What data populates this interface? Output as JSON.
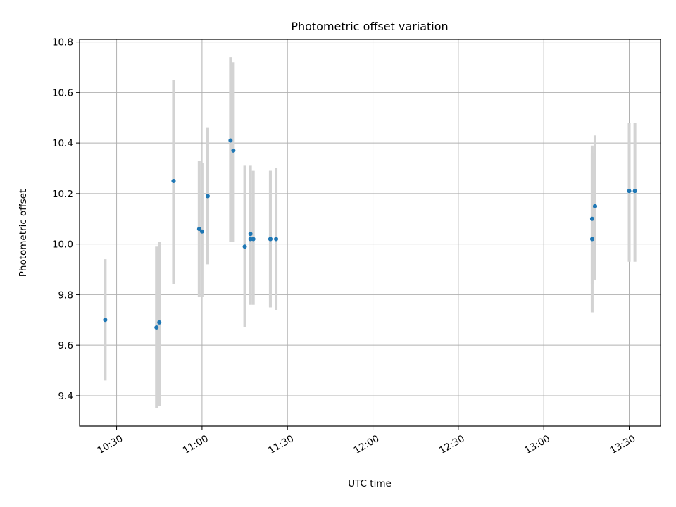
{
  "chart_data": {
    "type": "scatter",
    "title": "Photometric offset variation",
    "xlabel": "UTC time",
    "ylabel": "Photometric offset",
    "xlim": [
      "10:17",
      "13:41"
    ],
    "ylim": [
      9.28,
      10.81
    ],
    "x_ticks": [
      "10:30",
      "11:00",
      "11:30",
      "12:00",
      "12:30",
      "13:00",
      "13:30"
    ],
    "y_ticks": [
      9.4,
      9.6,
      9.8,
      10.0,
      10.2,
      10.4,
      10.6,
      10.8
    ],
    "y_tick_labels": [
      "9.4",
      "9.6",
      "9.8",
      "10.0",
      "10.2",
      "10.4",
      "10.6",
      "10.8"
    ],
    "grid": true,
    "marker_color": "#1f77b4",
    "errorbar_color": "#d3d3d3",
    "points": [
      {
        "x": "10:26",
        "y": 9.7,
        "ylo": 9.46,
        "yhi": 9.94
      },
      {
        "x": "10:44",
        "y": 9.67,
        "ylo": 9.35,
        "yhi": 9.99
      },
      {
        "x": "10:45",
        "y": 9.69,
        "ylo": 9.36,
        "yhi": 10.01
      },
      {
        "x": "10:50",
        "y": 10.25,
        "ylo": 9.84,
        "yhi": 10.65
      },
      {
        "x": "10:50",
        "y": 10.25,
        "ylo": 9.85,
        "yhi": 10.65
      },
      {
        "x": "10:59",
        "y": 10.06,
        "ylo": 9.79,
        "yhi": 10.33
      },
      {
        "x": "11:00",
        "y": 10.05,
        "ylo": 9.79,
        "yhi": 10.32
      },
      {
        "x": "11:02",
        "y": 10.19,
        "ylo": 9.92,
        "yhi": 10.46
      },
      {
        "x": "11:10",
        "y": 10.41,
        "ylo": 10.01,
        "yhi": 10.74
      },
      {
        "x": "11:11",
        "y": 10.37,
        "ylo": 10.01,
        "yhi": 10.72
      },
      {
        "x": "11:15",
        "y": 9.99,
        "ylo": 9.67,
        "yhi": 10.31
      },
      {
        "x": "11:17",
        "y": 10.04,
        "ylo": 9.77,
        "yhi": 10.31
      },
      {
        "x": "11:17",
        "y": 10.02,
        "ylo": 9.76,
        "yhi": 10.29
      },
      {
        "x": "11:18",
        "y": 10.02,
        "ylo": 9.76,
        "yhi": 10.29
      },
      {
        "x": "11:24",
        "y": 10.02,
        "ylo": 9.75,
        "yhi": 10.29
      },
      {
        "x": "11:24",
        "y": 10.02,
        "ylo": 9.75,
        "yhi": 10.29
      },
      {
        "x": "11:26",
        "y": 10.02,
        "ylo": 9.74,
        "yhi": 10.3
      },
      {
        "x": "13:17",
        "y": 10.1,
        "ylo": 9.84,
        "yhi": 10.39
      },
      {
        "x": "13:17",
        "y": 10.02,
        "ylo": 9.73,
        "yhi": 10.36
      },
      {
        "x": "13:18",
        "y": 10.15,
        "ylo": 9.86,
        "yhi": 10.43
      },
      {
        "x": "13:18",
        "y": 10.15,
        "ylo": 9.86,
        "yhi": 10.43
      },
      {
        "x": "13:30",
        "y": 10.21,
        "ylo": 9.93,
        "yhi": 10.48
      },
      {
        "x": "13:32",
        "y": 10.21,
        "ylo": 9.93,
        "yhi": 10.48
      }
    ]
  }
}
